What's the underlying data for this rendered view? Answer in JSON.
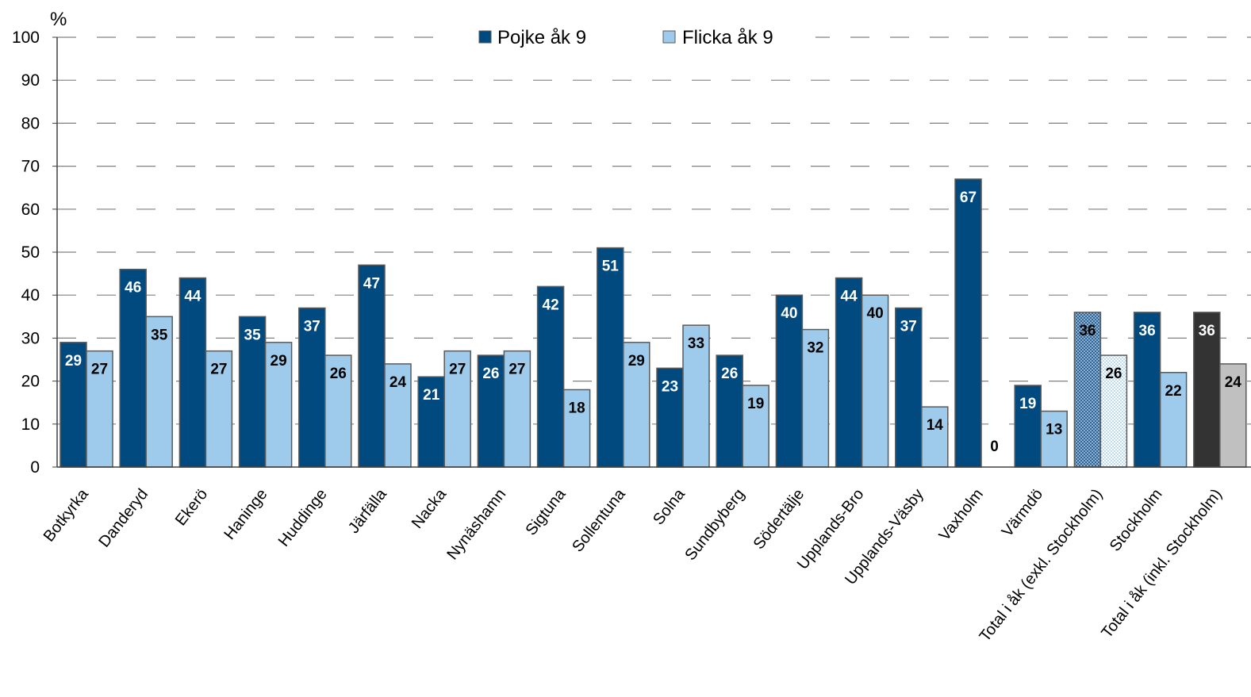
{
  "chart_data": {
    "type": "bar",
    "ylabel": "%",
    "ylim": [
      0,
      100
    ],
    "yticks": [
      0,
      10,
      20,
      30,
      40,
      50,
      60,
      70,
      80,
      90,
      100
    ],
    "grid": true,
    "legend_position": "top-center",
    "categories": [
      "Botkyrka",
      "Danderyd",
      "Ekerö",
      "Haninge",
      "Huddinge",
      "Järfälla",
      "Nacka",
      "Nynäshamn",
      "Sigtuna",
      "Sollentuna",
      "Solna",
      "Sundbyberg",
      "Södertälje",
      "Upplands-Bro",
      "Upplands-Väsby",
      "Vaxholm",
      "Värmdö",
      "Total i åk (exkl. Stockholm)",
      "Stockholm",
      "Total i åk (inkl. Stockholm)"
    ],
    "series": [
      {
        "name": "Pojke åk 9",
        "values": [
          29,
          46,
          44,
          35,
          37,
          47,
          21,
          26,
          42,
          51,
          23,
          26,
          40,
          44,
          37,
          67,
          19,
          36,
          36,
          36
        ],
        "display_values": [
          29,
          46,
          44,
          35,
          37,
          47,
          21,
          26,
          42,
          51,
          23,
          26,
          40,
          44,
          37,
          67,
          19,
          36,
          36,
          36
        ]
      },
      {
        "name": "Flicka åk 9",
        "values": [
          27,
          35,
          27,
          29,
          26,
          24,
          27,
          27,
          18,
          29,
          33,
          19,
          32,
          40,
          14,
          0,
          13,
          26,
          22,
          24
        ],
        "display_values": [
          27,
          35,
          27,
          29,
          26,
          24,
          27,
          27,
          18,
          29,
          33,
          19,
          32,
          40,
          14,
          0,
          13,
          26,
          22,
          24
        ]
      }
    ],
    "colors": {
      "boy": "#004a80",
      "girl": "#9ecbeb",
      "boy_total_excl": "#4f7ea6",
      "girl_total_excl": "#dfeef8",
      "boy_total_incl": "#333333",
      "girl_total_incl": "#c0c0c0",
      "grid": "#808080",
      "bar_stroke": "#5a5a5a"
    },
    "special_bars": {
      "total_excl_index": 17,
      "total_incl_index": 19,
      "zero_label_index": 15
    }
  }
}
